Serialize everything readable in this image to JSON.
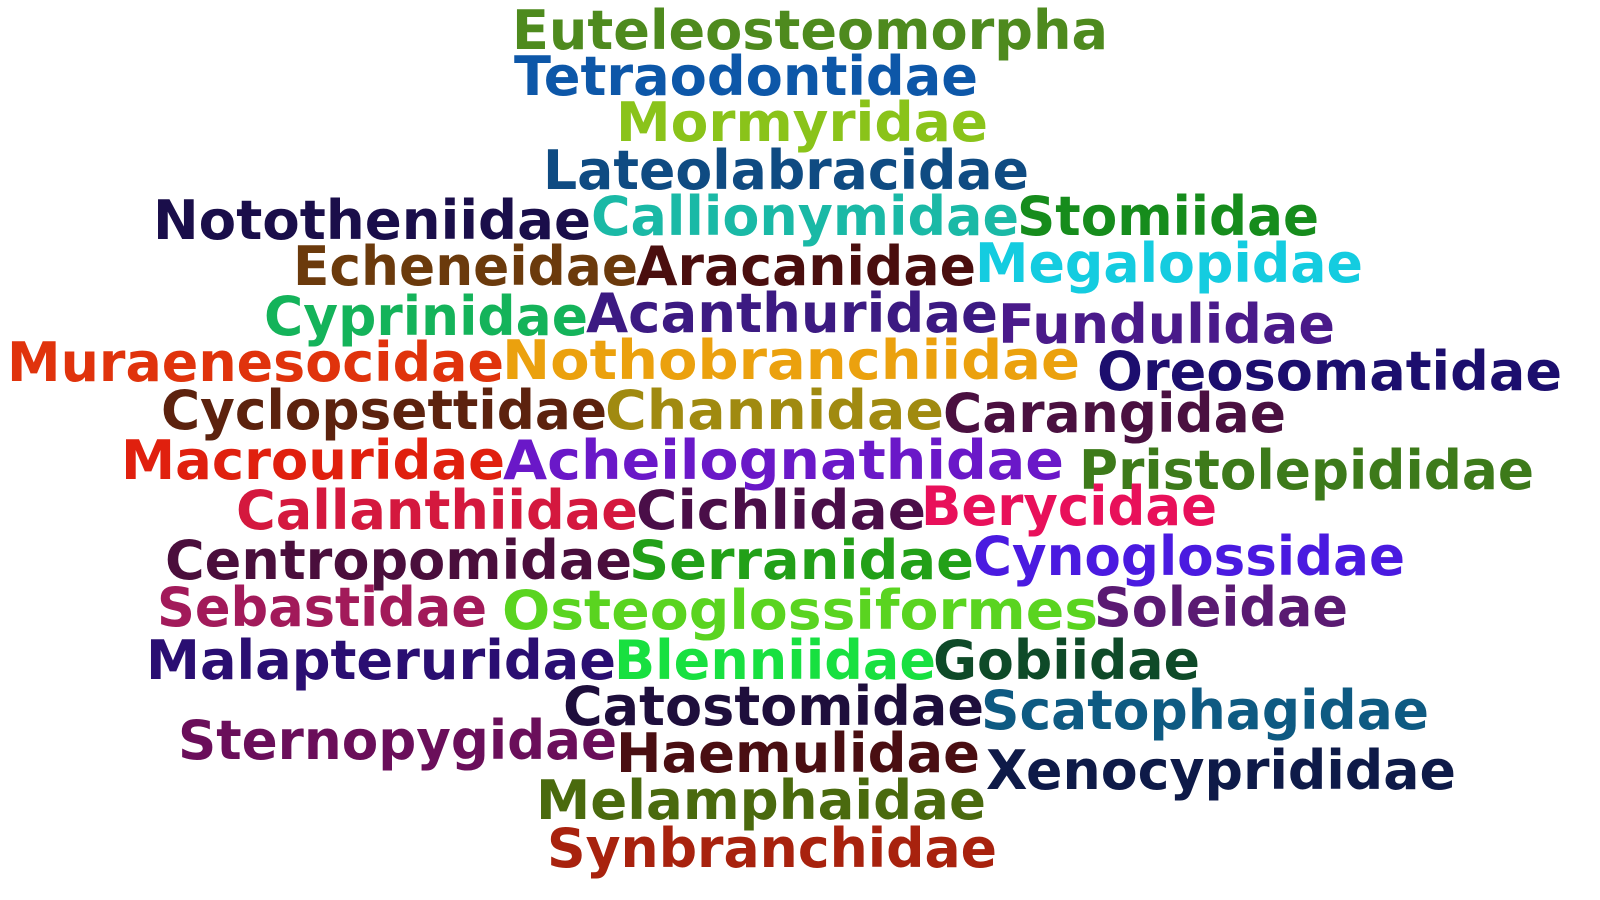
{
  "words": [
    {
      "text": "Euteleosteomorpha",
      "color": "#4e8a1e"
    },
    {
      "text": "Tetraodontidae",
      "color": "#0d57a8"
    },
    {
      "text": "Mormyridae",
      "color": "#8ac31a"
    },
    {
      "text": "Lateolabracidae",
      "color": "#0f4b82"
    },
    {
      "text": "Nototheniidae",
      "color": "#1a0e4a"
    },
    {
      "text": "Callionymidae",
      "color": "#1ab9a6"
    },
    {
      "text": "Stomiidae",
      "color": "#168c1c"
    },
    {
      "text": "Echeneidae",
      "color": "#6b3a0c"
    },
    {
      "text": "Aracanidae",
      "color": "#4a0e0e"
    },
    {
      "text": "Megalopidae",
      "color": "#14cce0"
    },
    {
      "text": "Cyprinidae",
      "color": "#14b35a"
    },
    {
      "text": "Acanthuridae",
      "color": "#3c1a82"
    },
    {
      "text": "Fundulidae",
      "color": "#4a1a8a"
    },
    {
      "text": "Muraenesocidae",
      "color": "#e0330c"
    },
    {
      "text": "Nothobranchiidae",
      "color": "#eba10e"
    },
    {
      "text": "Oreosomatidae",
      "color": "#1c0e6e"
    },
    {
      "text": "Cyclopsettidae",
      "color": "#5c220e"
    },
    {
      "text": "Channidae",
      "color": "#a08a10"
    },
    {
      "text": "Carangidae",
      "color": "#4a1040"
    },
    {
      "text": "Macrouridae",
      "color": "#e0200e"
    },
    {
      "text": "Acheilognathidae",
      "color": "#6a18c8"
    },
    {
      "text": "Pristolepididae",
      "color": "#3d7a1a"
    },
    {
      "text": "Callanthiidae",
      "color": "#d4183e"
    },
    {
      "text": "Cichlidae",
      "color": "#4a0e48"
    },
    {
      "text": "Berycidae",
      "color": "#e8105a"
    },
    {
      "text": "Centropomidae",
      "color": "#4a0e3c"
    },
    {
      "text": "Serranidae",
      "color": "#22a018"
    },
    {
      "text": "Cynoglossidae",
      "color": "#4a1ae0"
    },
    {
      "text": "Sebastidae",
      "color": "#a21a5a"
    },
    {
      "text": "Osteoglossiformes",
      "color": "#5ad420"
    },
    {
      "text": "Soleidae",
      "color": "#5a1a72"
    },
    {
      "text": "Malapteruridae",
      "color": "#2a0e72"
    },
    {
      "text": "Blenniidae",
      "color": "#18e040"
    },
    {
      "text": "Gobiidae",
      "color": "#0e4a28"
    },
    {
      "text": "Catostomidae",
      "color": "#1e0e3c"
    },
    {
      "text": "Scatophagidae",
      "color": "#0e5a82"
    },
    {
      "text": "Sternopygidae",
      "color": "#6a0e5a"
    },
    {
      "text": "Haemulidae",
      "color": "#4a0e12"
    },
    {
      "text": "Xenocyprididae",
      "color": "#0e1a48"
    },
    {
      "text": "Melamphaidae",
      "color": "#4a6a0e"
    },
    {
      "text": "Synbranchidae",
      "color": "#a8220e"
    }
  ]
}
